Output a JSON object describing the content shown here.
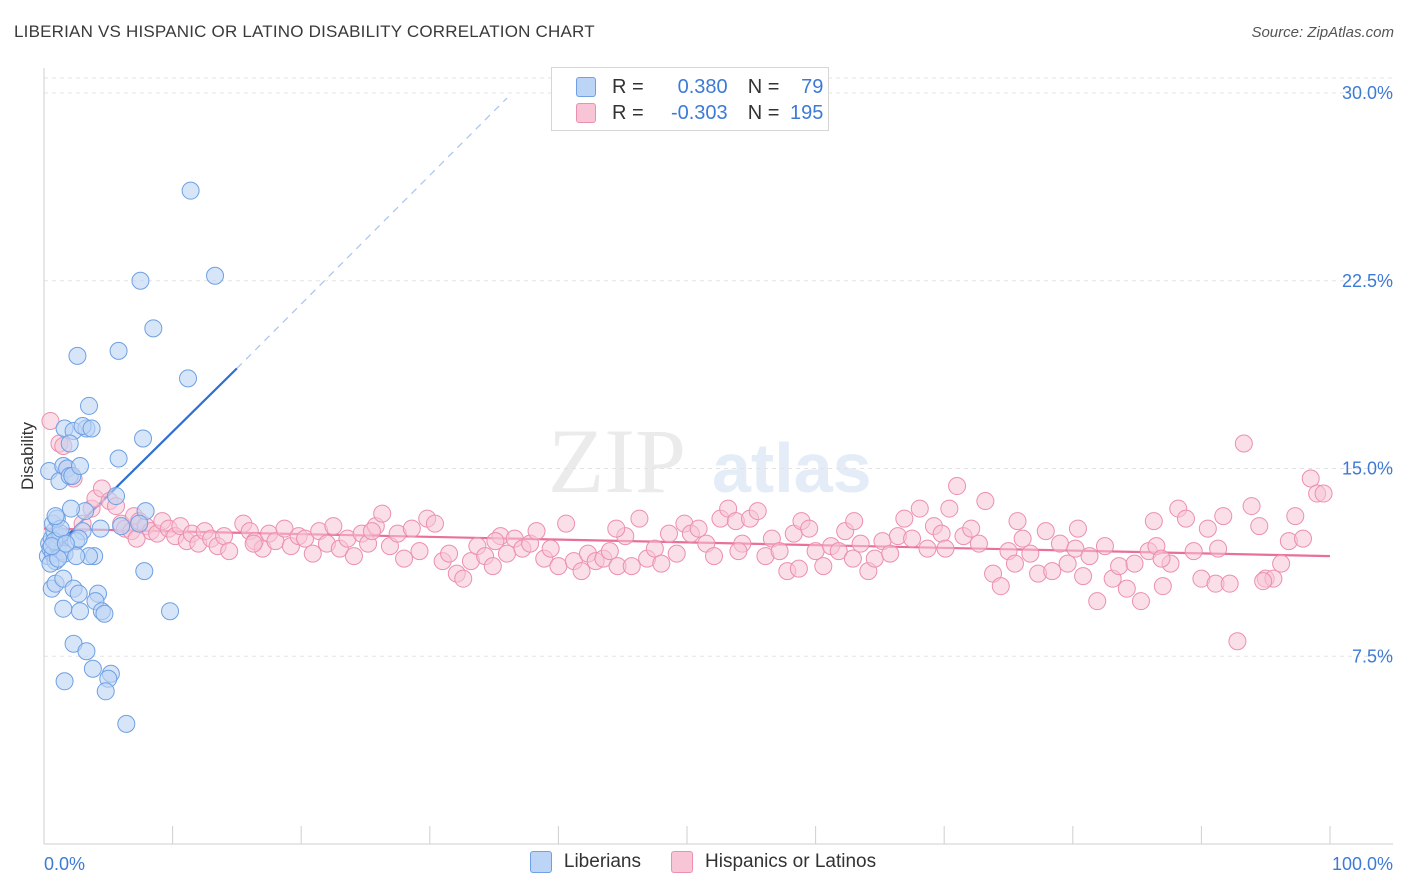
{
  "title": "LIBERIAN VS HISPANIC OR LATINO DISABILITY CORRELATION CHART",
  "source": "Source: ZipAtlas.com",
  "watermark": {
    "zip": "ZIP",
    "atlas": "atlas"
  },
  "legend": {
    "r_label": "R =",
    "n_label": "N =",
    "series1": {
      "r": "0.380",
      "n": "79"
    },
    "series2": {
      "r": "-0.303",
      "n": "195"
    }
  },
  "colors": {
    "blue_fill": "#bcd4f5",
    "blue_stroke": "#6ea0e3",
    "blue_line": "#2f6fd3",
    "pink_fill": "#f7c5d6",
    "pink_stroke": "#ec8fb0",
    "pink_line": "#e8709a",
    "axis_label": "#3d7ad6",
    "grid": "#e3e3e3"
  },
  "chart_data": {
    "type": "scatter",
    "title": "LIBERIAN VS HISPANIC OR LATINO DISABILITY CORRELATION CHART",
    "xlabel": "",
    "ylabel": "Disability",
    "xlim": [
      0,
      100
    ],
    "ylim": [
      0,
      31
    ],
    "x_tick_labels": [
      "0.0%",
      "100.0%"
    ],
    "y_ticks": [
      7.5,
      15.0,
      22.5,
      30.0
    ],
    "y_tick_labels": [
      "7.5%",
      "15.0%",
      "22.5%",
      "30.0%"
    ],
    "series": [
      {
        "name": "Liberians",
        "r": 0.38,
        "n": 79,
        "trend": {
          "x0": 0,
          "y0": 11.4,
          "x1": 15,
          "y1": 19.0,
          "dash_to_x": 36,
          "dash_to_y": 29.8
        },
        "points": [
          [
            0.3,
            11.5
          ],
          [
            0.4,
            12.0
          ],
          [
            0.5,
            11.8
          ],
          [
            0.6,
            12.2
          ],
          [
            0.7,
            11.6
          ],
          [
            0.8,
            12.5
          ],
          [
            0.9,
            11.3
          ],
          [
            1.0,
            12.0
          ],
          [
            1.1,
            11.9
          ],
          [
            1.2,
            12.3
          ],
          [
            0.5,
            11.2
          ],
          [
            0.7,
            12.8
          ],
          [
            1.3,
            12.4
          ],
          [
            1.0,
            13.0
          ],
          [
            1.4,
            11.7
          ],
          [
            0.6,
            10.2
          ],
          [
            0.9,
            10.4
          ],
          [
            1.5,
            10.6
          ],
          [
            1.6,
            11.6
          ],
          [
            0.4,
            14.9
          ],
          [
            1.2,
            14.5
          ],
          [
            1.5,
            15.1
          ],
          [
            1.8,
            15.0
          ],
          [
            2.0,
            14.7
          ],
          [
            1.6,
            16.6
          ],
          [
            2.3,
            16.5
          ],
          [
            3.3,
            16.6
          ],
          [
            2.0,
            16.0
          ],
          [
            3.0,
            16.7
          ],
          [
            3.7,
            16.6
          ],
          [
            3.5,
            17.5
          ],
          [
            2.6,
            19.5
          ],
          [
            5.8,
            19.7
          ],
          [
            2.2,
            14.7
          ],
          [
            2.8,
            15.1
          ],
          [
            3.0,
            12.5
          ],
          [
            3.2,
            13.3
          ],
          [
            2.5,
            12.1
          ],
          [
            2.3,
            10.2
          ],
          [
            2.7,
            10.0
          ],
          [
            4.2,
            10.0
          ],
          [
            4.0,
            9.7
          ],
          [
            1.5,
            9.4
          ],
          [
            2.8,
            9.3
          ],
          [
            4.5,
            9.3
          ],
          [
            4.7,
            9.2
          ],
          [
            2.3,
            8.0
          ],
          [
            3.3,
            7.7
          ],
          [
            3.8,
            7.0
          ],
          [
            5.2,
            6.8
          ],
          [
            5.0,
            6.6
          ],
          [
            1.6,
            6.5
          ],
          [
            4.8,
            6.1
          ],
          [
            6.4,
            4.8
          ],
          [
            3.9,
            11.5
          ],
          [
            3.5,
            11.5
          ],
          [
            7.8,
            10.9
          ],
          [
            9.8,
            9.3
          ],
          [
            7.7,
            16.2
          ],
          [
            5.8,
            15.4
          ],
          [
            5.6,
            13.9
          ],
          [
            7.9,
            13.3
          ],
          [
            7.4,
            12.8
          ],
          [
            6.0,
            12.7
          ],
          [
            4.4,
            12.6
          ],
          [
            2.7,
            12.2
          ],
          [
            2.5,
            11.5
          ],
          [
            11.2,
            18.6
          ],
          [
            8.5,
            20.6
          ],
          [
            7.5,
            22.5
          ],
          [
            13.3,
            22.7
          ],
          [
            11.4,
            26.1
          ],
          [
            0.8,
            12.1
          ],
          [
            1.1,
            11.4
          ],
          [
            0.6,
            11.9
          ],
          [
            1.3,
            12.6
          ],
          [
            0.9,
            13.1
          ],
          [
            1.7,
            12.0
          ],
          [
            2.1,
            13.4
          ]
        ]
      },
      {
        "name": "Hispanics or Latinos",
        "r": -0.303,
        "n": 195,
        "trend": {
          "x0": 0,
          "y0": 12.6,
          "x1": 100,
          "y1": 11.5
        },
        "points": [
          [
            0.5,
            16.9
          ],
          [
            1.2,
            16.0
          ],
          [
            1.5,
            15.9
          ],
          [
            1.8,
            15.0
          ],
          [
            2.3,
            14.6
          ],
          [
            3.7,
            13.4
          ],
          [
            4.0,
            13.8
          ],
          [
            4.5,
            14.2
          ],
          [
            5.1,
            13.7
          ],
          [
            5.6,
            13.5
          ],
          [
            6.0,
            12.8
          ],
          [
            6.3,
            12.6
          ],
          [
            6.8,
            12.5
          ],
          [
            7.0,
            13.1
          ],
          [
            7.4,
            12.9
          ],
          [
            7.9,
            12.7
          ],
          [
            8.3,
            12.5
          ],
          [
            8.8,
            12.4
          ],
          [
            9.2,
            12.9
          ],
          [
            9.7,
            12.6
          ],
          [
            10.2,
            12.3
          ],
          [
            10.6,
            12.7
          ],
          [
            11.1,
            12.1
          ],
          [
            11.5,
            12.4
          ],
          [
            12.0,
            12.0
          ],
          [
            12.5,
            12.5
          ],
          [
            13.0,
            12.2
          ],
          [
            13.5,
            11.9
          ],
          [
            14.0,
            12.3
          ],
          [
            14.4,
            11.7
          ],
          [
            15.5,
            12.8
          ],
          [
            16.0,
            12.5
          ],
          [
            16.4,
            12.1
          ],
          [
            17.0,
            11.8
          ],
          [
            17.5,
            12.4
          ],
          [
            18.0,
            12.1
          ],
          [
            18.7,
            12.6
          ],
          [
            19.2,
            11.9
          ],
          [
            19.8,
            12.3
          ],
          [
            20.3,
            12.2
          ],
          [
            20.9,
            11.6
          ],
          [
            21.4,
            12.5
          ],
          [
            22.0,
            12.0
          ],
          [
            22.5,
            12.7
          ],
          [
            23.0,
            11.8
          ],
          [
            23.6,
            12.2
          ],
          [
            24.1,
            11.5
          ],
          [
            24.7,
            12.4
          ],
          [
            25.2,
            12.0
          ],
          [
            25.8,
            12.7
          ],
          [
            26.3,
            13.2
          ],
          [
            26.9,
            11.9
          ],
          [
            27.5,
            12.4
          ],
          [
            28.0,
            11.4
          ],
          [
            28.6,
            12.6
          ],
          [
            29.2,
            11.7
          ],
          [
            29.8,
            13.0
          ],
          [
            30.4,
            12.8
          ],
          [
            31.0,
            11.3
          ],
          [
            31.5,
            11.6
          ],
          [
            32.1,
            10.8
          ],
          [
            32.6,
            10.6
          ],
          [
            33.2,
            11.3
          ],
          [
            33.7,
            11.9
          ],
          [
            34.3,
            11.5
          ],
          [
            34.9,
            11.1
          ],
          [
            35.5,
            12.3
          ],
          [
            36.0,
            11.6
          ],
          [
            36.6,
            12.2
          ],
          [
            37.2,
            11.8
          ],
          [
            37.8,
            12.0
          ],
          [
            38.3,
            12.5
          ],
          [
            38.9,
            11.4
          ],
          [
            39.4,
            11.8
          ],
          [
            40.0,
            11.1
          ],
          [
            40.6,
            12.8
          ],
          [
            41.2,
            11.3
          ],
          [
            41.8,
            10.9
          ],
          [
            42.3,
            11.6
          ],
          [
            42.9,
            11.3
          ],
          [
            43.5,
            11.4
          ],
          [
            44.0,
            11.7
          ],
          [
            44.6,
            11.1
          ],
          [
            45.2,
            12.3
          ],
          [
            45.7,
            11.1
          ],
          [
            46.3,
            13.0
          ],
          [
            46.9,
            11.4
          ],
          [
            47.5,
            11.8
          ],
          [
            48.0,
            11.2
          ],
          [
            48.6,
            12.4
          ],
          [
            49.2,
            11.6
          ],
          [
            49.8,
            12.8
          ],
          [
            50.3,
            12.4
          ],
          [
            50.9,
            12.6
          ],
          [
            51.5,
            12.0
          ],
          [
            52.1,
            11.5
          ],
          [
            52.6,
            13.0
          ],
          [
            53.2,
            13.4
          ],
          [
            53.8,
            12.9
          ],
          [
            54.3,
            12.0
          ],
          [
            54.9,
            13.0
          ],
          [
            55.5,
            13.3
          ],
          [
            56.1,
            11.5
          ],
          [
            56.6,
            12.2
          ],
          [
            57.2,
            11.7
          ],
          [
            57.8,
            10.9
          ],
          [
            58.3,
            12.4
          ],
          [
            58.9,
            12.9
          ],
          [
            59.5,
            12.6
          ],
          [
            60.0,
            11.7
          ],
          [
            60.6,
            11.1
          ],
          [
            61.2,
            11.9
          ],
          [
            61.8,
            11.7
          ],
          [
            62.3,
            12.5
          ],
          [
            62.9,
            11.4
          ],
          [
            63.5,
            12.0
          ],
          [
            64.1,
            10.9
          ],
          [
            64.6,
            11.4
          ],
          [
            65.2,
            12.1
          ],
          [
            65.8,
            11.6
          ],
          [
            66.4,
            12.3
          ],
          [
            66.9,
            13.0
          ],
          [
            67.5,
            12.2
          ],
          [
            68.1,
            13.4
          ],
          [
            68.7,
            11.8
          ],
          [
            69.2,
            12.7
          ],
          [
            69.8,
            12.4
          ],
          [
            70.4,
            13.4
          ],
          [
            71.0,
            14.3
          ],
          [
            71.5,
            12.3
          ],
          [
            72.1,
            12.6
          ],
          [
            72.7,
            12.0
          ],
          [
            73.2,
            13.7
          ],
          [
            73.8,
            10.8
          ],
          [
            74.4,
            10.3
          ],
          [
            75.0,
            11.7
          ],
          [
            75.5,
            11.2
          ],
          [
            76.1,
            12.2
          ],
          [
            76.7,
            11.6
          ],
          [
            77.3,
            10.8
          ],
          [
            77.9,
            12.5
          ],
          [
            78.4,
            10.9
          ],
          [
            79.0,
            12.0
          ],
          [
            79.6,
            11.2
          ],
          [
            80.2,
            11.8
          ],
          [
            80.8,
            10.7
          ],
          [
            81.3,
            11.5
          ],
          [
            81.9,
            9.7
          ],
          [
            82.5,
            11.9
          ],
          [
            83.1,
            10.6
          ],
          [
            83.6,
            11.1
          ],
          [
            84.2,
            10.2
          ],
          [
            84.8,
            11.2
          ],
          [
            85.3,
            9.7
          ],
          [
            85.9,
            11.7
          ],
          [
            86.5,
            11.9
          ],
          [
            87.0,
            10.3
          ],
          [
            87.6,
            11.2
          ],
          [
            88.2,
            13.4
          ],
          [
            88.8,
            13.0
          ],
          [
            89.4,
            11.7
          ],
          [
            90.0,
            10.6
          ],
          [
            90.5,
            12.6
          ],
          [
            91.1,
            10.4
          ],
          [
            91.7,
            13.1
          ],
          [
            92.2,
            10.4
          ],
          [
            92.8,
            8.1
          ],
          [
            93.3,
            16.0
          ],
          [
            93.9,
            13.5
          ],
          [
            94.5,
            12.7
          ],
          [
            95.0,
            10.6
          ],
          [
            95.6,
            10.6
          ],
          [
            96.2,
            11.2
          ],
          [
            96.8,
            12.1
          ],
          [
            97.3,
            13.1
          ],
          [
            97.9,
            12.2
          ],
          [
            98.5,
            14.6
          ],
          [
            99.0,
            14.0
          ],
          [
            99.5,
            14.0
          ],
          [
            75.7,
            12.9
          ],
          [
            80.4,
            12.6
          ],
          [
            86.3,
            12.9
          ],
          [
            63.0,
            12.9
          ],
          [
            54.0,
            11.7
          ],
          [
            44.5,
            12.6
          ],
          [
            35.1,
            12.1
          ],
          [
            25.5,
            12.5
          ],
          [
            16.3,
            12.0
          ],
          [
            7.2,
            12.2
          ],
          [
            3.0,
            12.8
          ],
          [
            58.7,
            11.0
          ],
          [
            70.1,
            11.8
          ],
          [
            91.3,
            11.8
          ],
          [
            94.8,
            10.5
          ],
          [
            86.9,
            11.4
          ]
        ]
      }
    ]
  }
}
